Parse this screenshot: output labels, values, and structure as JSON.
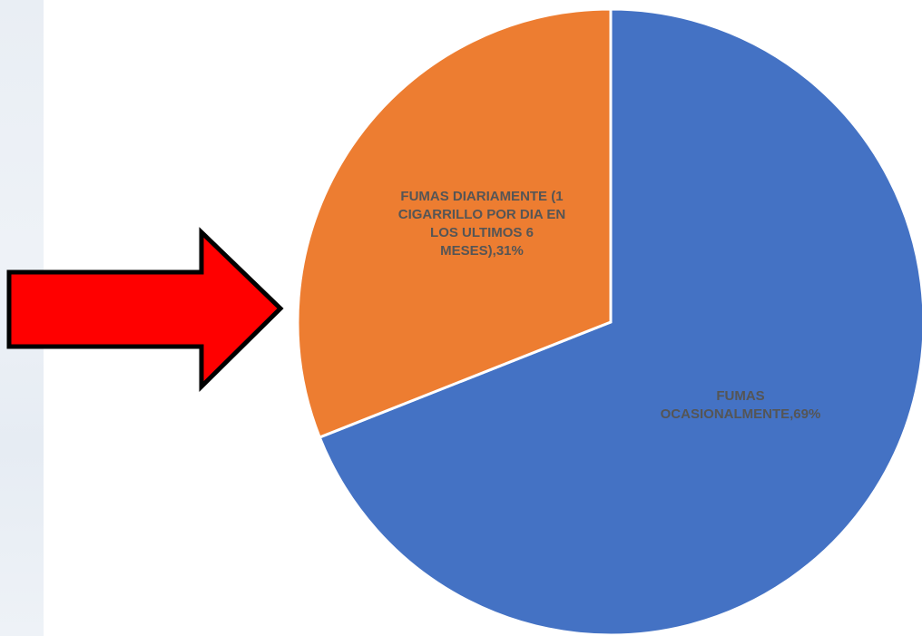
{
  "chart_data": {
    "type": "pie",
    "slices": [
      {
        "label_lines": [
          "FUMAS",
          "OCASIONALMENTE,69%"
        ],
        "value": 69,
        "color": "#4472c4"
      },
      {
        "label_lines": [
          "FUMAS DIARIAMENTE (1",
          "CIGARRILLO POR DIA EN",
          "LOS ULTIMOS 6",
          "MESES),31%"
        ],
        "value": 31,
        "color": "#ed7d31"
      }
    ],
    "start": "12-o'clock",
    "direction": "clockwise",
    "slice_border_color": "#ffffff"
  },
  "annotation": {
    "arrow_icon": "red-right-arrow-icon",
    "arrow_color": "#ff0000",
    "arrow_outline": "#000000"
  }
}
